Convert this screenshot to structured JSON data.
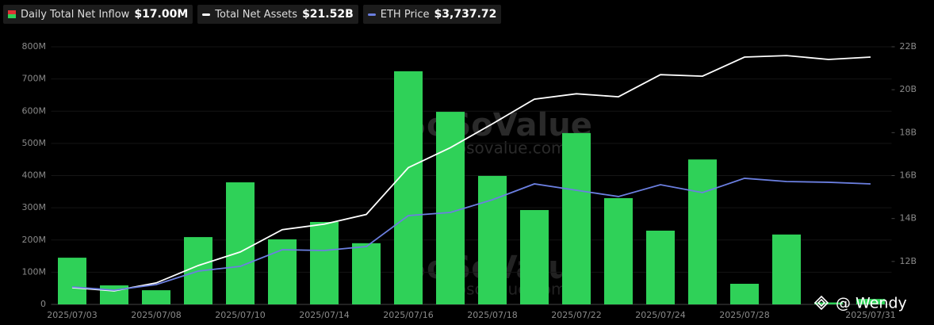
{
  "chart_data": {
    "type": "combo",
    "categories": [
      "2025/07/03",
      null,
      "2025/07/08",
      null,
      "2025/07/10",
      null,
      "2025/07/14",
      null,
      "2025/07/16",
      null,
      "2025/07/18",
      null,
      "2025/07/22",
      null,
      "2025/07/24",
      null,
      "2025/07/28",
      null,
      null,
      "2025/07/31"
    ],
    "series": [
      {
        "name": "Daily Total Net Inflow",
        "latest_label": "$17.00M",
        "type": "bar",
        "color": "#2fd158",
        "axis": "y",
        "values": [
          145,
          59,
          44,
          209,
          379,
          202,
          256,
          190,
          724,
          598,
          399,
          293,
          532,
          330,
          229,
          450,
          64,
          217,
          6,
          17
        ]
      },
      {
        "name": "Total Net Assets",
        "latest_label": "$21.52B",
        "type": "line",
        "color": "#ffffff",
        "axis": "y2",
        "values": [
          10.78,
          10.63,
          11.0,
          11.81,
          12.44,
          13.48,
          13.74,
          14.19,
          16.37,
          17.3,
          18.41,
          19.56,
          19.81,
          19.67,
          20.7,
          20.63,
          21.52,
          21.59,
          21.41,
          21.52
        ]
      },
      {
        "name": "ETH Price",
        "latest_label": "$3,737.72",
        "type": "line",
        "color": "#6b7fe0",
        "axis": "y3",
        "values": [
          2590,
          2555,
          2617,
          2767,
          2820,
          3005,
          2996,
          3040,
          3385,
          3420,
          3561,
          3738,
          3667,
          3597,
          3729,
          3641,
          3800,
          3764,
          3756,
          3737.72
        ]
      }
    ],
    "ylim": [
      0,
      800
    ],
    "yticks": [
      0,
      {
        "value": 100,
        "label": "100M"
      },
      {
        "value": 200,
        "label": "200M"
      },
      {
        "value": 300,
        "label": "300M"
      },
      {
        "value": 400,
        "label": "400M"
      },
      {
        "value": 500,
        "label": "500M"
      },
      {
        "value": 600,
        "label": "600M"
      },
      {
        "value": 700,
        "label": "700M"
      },
      {
        "value": 800,
        "label": "800M"
      }
    ],
    "y2lim": [
      10,
      22
    ],
    "y2ticks": [
      {
        "value": 12,
        "label": "12B"
      },
      {
        "value": 14,
        "label": "14B"
      },
      {
        "value": 16,
        "label": "16B"
      },
      {
        "value": 18,
        "label": "18B"
      },
      {
        "value": 20,
        "label": "20B"
      },
      {
        "value": 22,
        "label": "22B"
      }
    ],
    "y3lim": [
      2396,
      5265
    ],
    "grid": true,
    "watermarks": [
      "SoSoValue",
      "sosovalue.com"
    ],
    "credit": "@ Wendy"
  }
}
